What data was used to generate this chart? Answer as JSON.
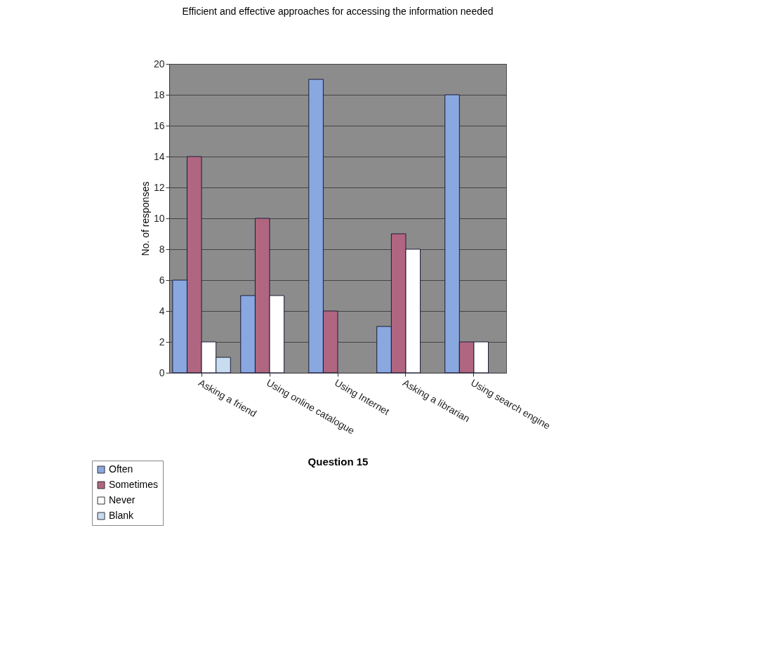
{
  "chart_data": {
    "type": "bar",
    "title": "Efficient and effective approaches for accessing the information needed",
    "xlabel": "Question 15",
    "ylabel": "No. of responses",
    "categories": [
      "Asking a friend",
      "Using online catalogue",
      "Using Internet",
      "Asking  a librarian",
      "Using search engine"
    ],
    "series": [
      {
        "name": "Often",
        "color": "#8aa8e0",
        "values": [
          6,
          5,
          19,
          3,
          18
        ]
      },
      {
        "name": "Sometimes",
        "color": "#b06680",
        "values": [
          14,
          10,
          4,
          9,
          2
        ]
      },
      {
        "name": "Never",
        "color": "#ffffff",
        "values": [
          2,
          5,
          0,
          8,
          2
        ]
      },
      {
        "name": "Blank",
        "color": "#c8dcf0",
        "values": [
          1,
          null,
          null,
          null,
          null
        ]
      }
    ],
    "ylim": [
      0,
      20
    ],
    "yticks": [
      0,
      2,
      4,
      6,
      8,
      10,
      12,
      14,
      16,
      18,
      20
    ],
    "grid": "y",
    "legend": "bottom left"
  }
}
